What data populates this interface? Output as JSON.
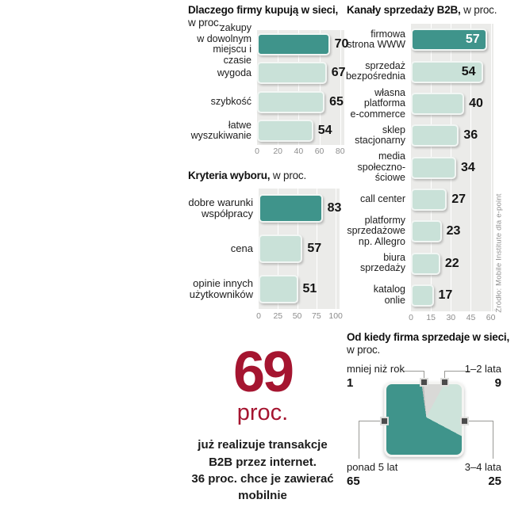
{
  "source_note": "Źródło: Mobile Institute dla e-point",
  "colors": {
    "dark_teal": "#3f948b",
    "light_teal": "#c9e1d8",
    "panel_gray": "#ebebe9",
    "accent_red": "#a51530",
    "slice_under_year": "#bfbfbd",
    "slice_1_2_years": "#d9d9d7",
    "slice_3_4_years": "#cde3da",
    "slice_over_5_years": "#3f948b"
  },
  "stat": {
    "number": "69",
    "unit": "proc.",
    "caption": "już realizuje transakcje\nB2B przez internet.\n36 proc. chce je zawierać\nmobilnie"
  },
  "chart_data": [
    {
      "type": "bar",
      "title": "Dlaczego firmy kupują w sieci,",
      "subtitle": "w proc.",
      "categories": [
        "zakupy\nw dowolnym\nmiejscu i czasie",
        "wygoda",
        "szybkość",
        "łatwe\nwyszukiwanie"
      ],
      "values": [
        70,
        67,
        65,
        54
      ],
      "ticks": [
        0,
        20,
        40,
        60,
        80
      ],
      "axis_max": 84,
      "highlight_index": 0,
      "legend": "none",
      "grid": "vertical-white"
    },
    {
      "type": "bar",
      "title": "Kanały sprzedaży B2B,",
      "subtitle": "w proc.",
      "categories": [
        "firmowa\nstrona WWW",
        "sprzedaż\nbezpośrednia",
        "własna\nplatforma\ne-commerce",
        "sklep\nstacjonarny",
        "media\nspołeczno-\nściowe",
        "call center",
        "platformy\nsprzedażowe\nnp. Allegro",
        "biura\nsprzedaży",
        "katalog\nonlie"
      ],
      "values": [
        57,
        54,
        40,
        36,
        34,
        27,
        23,
        22,
        17
      ],
      "ticks": [
        0,
        15,
        30,
        45,
        60
      ],
      "axis_max": 62,
      "highlight_index": 0,
      "legend": "none",
      "grid": "vertical-white"
    },
    {
      "type": "bar",
      "title": "Kryteria wyboru,",
      "subtitle": "w proc.",
      "categories": [
        "dobre warunki\nwspółpracy",
        "cena",
        "opinie innych\nużytkowników"
      ],
      "values": [
        83,
        57,
        51
      ],
      "ticks": [
        0,
        25,
        50,
        75,
        100
      ],
      "axis_max": 105,
      "highlight_index": 0,
      "legend": "none",
      "grid": "vertical-white"
    },
    {
      "type": "pie",
      "title": "Od kiedy firma sprzedaje w sieci,",
      "subtitle": "w proc.",
      "shape": "rounded-square",
      "start_angle_deg": 352,
      "slices": [
        {
          "label": "mniej niż rok",
          "value": 1,
          "color": "#bfbfbd"
        },
        {
          "label": "1–2 lata",
          "value": 9,
          "color": "#d9d9d7"
        },
        {
          "label": "3–4 lata",
          "value": 25,
          "color": "#cde3da"
        },
        {
          "label": "ponad 5 lat",
          "value": 65,
          "color": "#3f948b"
        }
      ]
    }
  ]
}
